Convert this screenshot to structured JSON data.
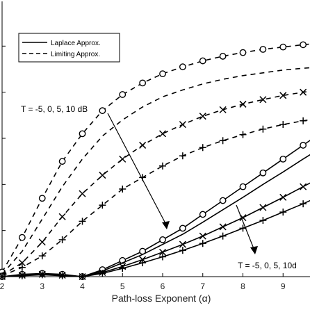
{
  "chart_data": {
    "type": "line",
    "title": "",
    "xlabel": "Path-loss Exponent (α)",
    "ylabel": "",
    "xlim": [
      2,
      10
    ],
    "ylim": [
      0,
      6
    ],
    "xticks": [
      2,
      3,
      4,
      5,
      6,
      7,
      8,
      9
    ],
    "grid": false,
    "legend": {
      "position": "top-left",
      "entries": [
        {
          "label": "Laplace Approx.",
          "style": "solid"
        },
        {
          "label": "Limiting Approx.",
          "style": "dashed"
        }
      ]
    },
    "annotations": [
      {
        "text": "T = -5, 0, 5, 10 dB"
      },
      {
        "text": "T = -5, 0, 5, 10d"
      }
    ],
    "series": [
      {
        "group": "limiting",
        "marker": "circle",
        "x": [
          2.0,
          2.5,
          3.0,
          3.5,
          4.0,
          4.5,
          5.0,
          5.5,
          6.0,
          6.5,
          7.0,
          7.5,
          8.0,
          8.5,
          9.0,
          9.5,
          10.0
        ],
        "y": [
          0.1,
          0.85,
          1.7,
          2.5,
          3.1,
          3.6,
          3.95,
          4.2,
          4.4,
          4.55,
          4.68,
          4.78,
          4.86,
          4.93,
          4.98,
          5.03,
          5.07
        ]
      },
      {
        "group": "limiting",
        "marker": "none",
        "x": [
          2.0,
          2.5,
          3.0,
          3.5,
          4.0,
          4.5,
          5.0,
          5.5,
          6.0,
          6.5,
          7.0,
          7.5,
          8.0,
          8.5,
          9.0,
          9.5,
          10.0
        ],
        "y": [
          0.05,
          0.55,
          1.25,
          1.95,
          2.55,
          3.05,
          3.4,
          3.68,
          3.9,
          4.05,
          4.18,
          4.28,
          4.36,
          4.42,
          4.48,
          4.52,
          4.55
        ]
      },
      {
        "group": "limiting",
        "marker": "x",
        "x": [
          2.0,
          2.5,
          3.0,
          3.5,
          4.0,
          4.5,
          5.0,
          5.5,
          6.0,
          6.5,
          7.0,
          7.5,
          8.0,
          8.5,
          9.0,
          9.5,
          10.0
        ],
        "y": [
          0.03,
          0.3,
          0.75,
          1.3,
          1.8,
          2.2,
          2.55,
          2.85,
          3.1,
          3.3,
          3.48,
          3.62,
          3.74,
          3.84,
          3.93,
          4.0,
          4.06
        ]
      },
      {
        "group": "limiting",
        "marker": "plus",
        "x": [
          2.0,
          2.5,
          3.0,
          3.5,
          4.0,
          4.5,
          5.0,
          5.5,
          6.0,
          6.5,
          7.0,
          7.5,
          8.0,
          8.5,
          9.0,
          9.5,
          10.0
        ],
        "y": [
          0.02,
          0.2,
          0.45,
          0.8,
          1.2,
          1.55,
          1.9,
          2.15,
          2.4,
          2.62,
          2.8,
          2.95,
          3.08,
          3.2,
          3.3,
          3.38,
          3.45
        ]
      },
      {
        "group": "laplace",
        "marker": "circle",
        "x": [
          2.0,
          2.5,
          3.0,
          3.5,
          4.0,
          4.5,
          5.0,
          5.5,
          6.0,
          6.5,
          7.0,
          7.5,
          8.0,
          8.5,
          9.0,
          9.5,
          10.0
        ],
        "y": [
          0.0,
          0.05,
          0.07,
          0.05,
          0.0,
          0.15,
          0.35,
          0.55,
          0.8,
          1.05,
          1.35,
          1.65,
          1.95,
          2.25,
          2.55,
          2.85,
          3.15
        ]
      },
      {
        "group": "laplace",
        "marker": "none",
        "x": [
          2.0,
          2.5,
          3.0,
          3.5,
          4.0,
          4.5,
          5.0,
          5.5,
          6.0,
          6.5,
          7.0,
          7.5,
          8.0,
          8.5,
          9.0,
          9.5,
          10.0
        ],
        "y": [
          0.0,
          0.04,
          0.06,
          0.04,
          0.0,
          0.12,
          0.3,
          0.48,
          0.7,
          0.92,
          1.18,
          1.45,
          1.72,
          2.0,
          2.27,
          2.55,
          2.82
        ]
      },
      {
        "group": "laplace",
        "marker": "x",
        "x": [
          2.0,
          2.5,
          3.0,
          3.5,
          4.0,
          4.5,
          5.0,
          5.5,
          6.0,
          6.5,
          7.0,
          7.5,
          8.0,
          8.5,
          9.0,
          9.5,
          10.0
        ],
        "y": [
          0.0,
          0.03,
          0.05,
          0.03,
          0.0,
          0.09,
          0.22,
          0.37,
          0.53,
          0.7,
          0.88,
          1.08,
          1.28,
          1.5,
          1.72,
          1.95,
          2.18
        ]
      },
      {
        "group": "laplace",
        "marker": "plus",
        "x": [
          2.0,
          2.5,
          3.0,
          3.5,
          4.0,
          4.5,
          5.0,
          5.5,
          6.0,
          6.5,
          7.0,
          7.5,
          8.0,
          8.5,
          9.0,
          9.5,
          10.0
        ],
        "y": [
          0.0,
          0.02,
          0.04,
          0.02,
          0.0,
          0.07,
          0.18,
          0.3,
          0.43,
          0.57,
          0.72,
          0.88,
          1.05,
          1.22,
          1.4,
          1.58,
          1.78
        ]
      }
    ]
  }
}
